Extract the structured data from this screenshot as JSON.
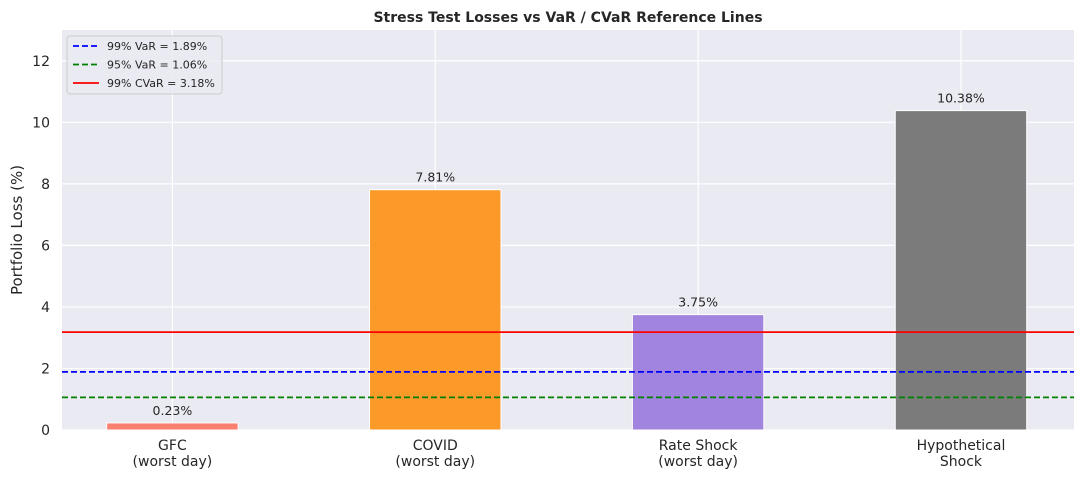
{
  "chart_data": {
    "type": "bar",
    "title": "Stress Test Losses vs VaR / CVaR Reference Lines",
    "xlabel": "",
    "ylabel": "Portfolio Loss (%)",
    "categories": [
      "GFC\n(worst day)",
      "COVID\n(worst day)",
      "Rate Shock\n(worst day)",
      "Hypothetical\nShock"
    ],
    "values": [
      0.23,
      7.81,
      3.75,
      10.38
    ],
    "data_labels": [
      "0.23%",
      "7.81%",
      "3.75%",
      "10.38%"
    ],
    "bar_colors": [
      "#f9806e",
      "#fb9a29",
      "#a084de",
      "#7b7b7b"
    ],
    "ylim": [
      0,
      13
    ],
    "yticks": [
      0,
      2,
      4,
      6,
      8,
      10,
      12
    ],
    "grid": true,
    "legend_position": "top-left",
    "reference_lines": [
      {
        "name": "99% VaR  = 1.89%",
        "value": 1.89,
        "color": "#0000ff",
        "style": "dashed"
      },
      {
        "name": "95% VaR  = 1.06%",
        "value": 1.06,
        "color": "#008000",
        "style": "dashed"
      },
      {
        "name": "99% CVaR = 3.18%",
        "value": 3.18,
        "color": "#ff0000",
        "style": "solid"
      }
    ]
  }
}
